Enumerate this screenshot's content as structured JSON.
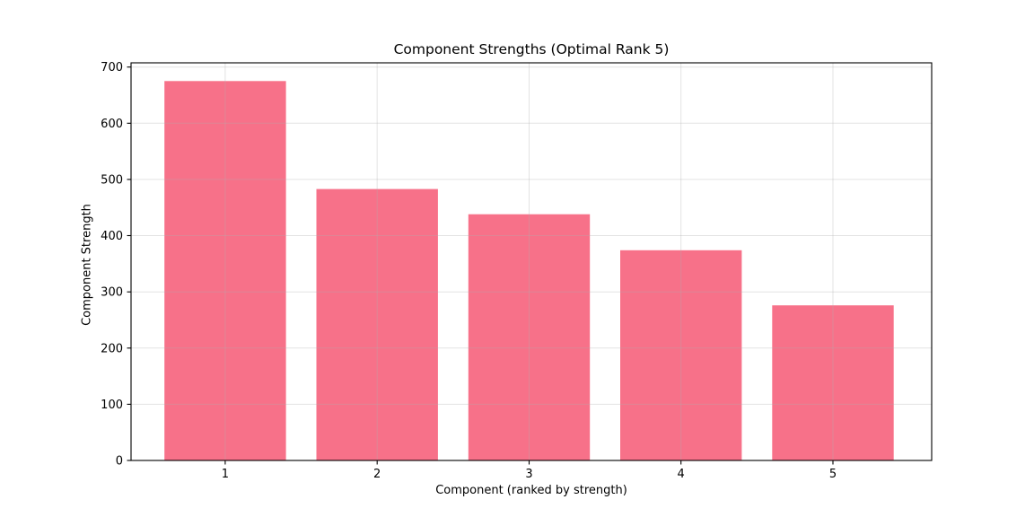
{
  "chart_data": {
    "type": "bar",
    "title": "Component Strengths (Optimal Rank 5)",
    "xlabel": "Component (ranked by strength)",
    "ylabel": "Component Strength",
    "categories": [
      "1",
      "2",
      "3",
      "4",
      "5"
    ],
    "x": [
      1,
      2,
      3,
      4,
      5
    ],
    "values": [
      675,
      483,
      438,
      374,
      276
    ],
    "yticks": [
      0,
      100,
      200,
      300,
      400,
      500,
      600,
      700
    ],
    "ylim": [
      0,
      707.5
    ],
    "xlim": [
      0.38,
      5.65
    ],
    "bar_width": 0.8,
    "bar_color": "#f77189",
    "grid": true,
    "grid_color": "#b0b0b0",
    "grid_opacity": 0.35,
    "spine_color": "#000000",
    "background": "#ffffff",
    "legend": "none"
  }
}
